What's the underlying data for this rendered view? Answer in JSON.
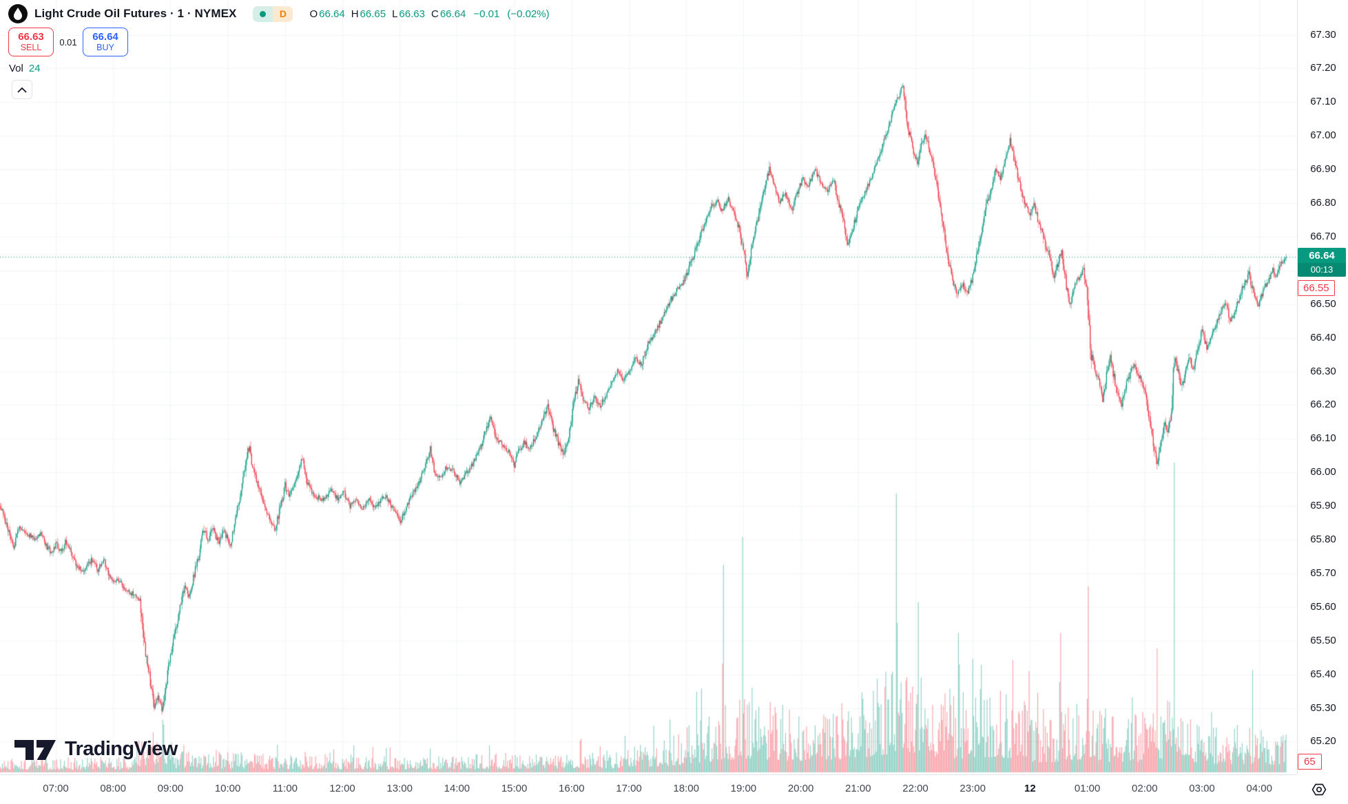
{
  "header": {
    "symbol_title": "Light Crude Oil Futures · 1 · NYMEX",
    "market_status": "open",
    "interval_badge": "D",
    "ohlc": {
      "o_label": "O",
      "o": "66.64",
      "h_label": "H",
      "h": "66.65",
      "l_label": "L",
      "l": "66.63",
      "c_label": "C",
      "c": "66.64",
      "change": "−0.01",
      "change_pct": "(−0.02%)"
    }
  },
  "trade_panel": {
    "sell_price": "66.63",
    "sell_label": "SELL",
    "spread": "0.01",
    "buy_price": "66.64",
    "buy_label": "BUY"
  },
  "volume_legend": {
    "label": "Vol",
    "value": "24"
  },
  "price_axis": {
    "tick_labels": [
      "67.30",
      "67.20",
      "67.10",
      "67.00",
      "66.90",
      "66.80",
      "66.70",
      "66.60",
      "66.50",
      "66.40",
      "66.30",
      "66.20",
      "66.10",
      "66.00",
      "65.90",
      "65.80",
      "65.70",
      "65.60",
      "65.50",
      "65.40",
      "65.30",
      "65.20"
    ],
    "current_price": "66.64",
    "countdown": "00:13",
    "ask_label": "66.55",
    "volume_label": "65"
  },
  "time_axis": {
    "labels": [
      "07:00",
      "08:00",
      "09:00",
      "10:00",
      "11:00",
      "12:00",
      "13:00",
      "14:00",
      "15:00",
      "16:00",
      "17:00",
      "18:00",
      "19:00",
      "20:00",
      "21:00",
      "22:00",
      "23:00",
      "12",
      "01:00",
      "02:00",
      "03:00",
      "04:00"
    ],
    "date_label": "12"
  },
  "watermark": "TradingView",
  "colors": {
    "up": "#089981",
    "down": "#F23645",
    "buy_blue": "#2962FF",
    "sell_red": "#F23645",
    "interval_orange": "#f57c00",
    "text": "#131722",
    "grid": "#f1f3f7",
    "axis_border": "#e0e3eb",
    "current_label_bg": "#089981",
    "countdown_bg": "#078a74",
    "vol_up": "rgba(8,153,129,0.45)",
    "vol_down": "rgba(242,54,69,0.45)"
  },
  "chart_data": {
    "type": "candlestick",
    "symbol": "Light Crude Oil Futures (NYMEX)",
    "interval": "1 minute",
    "x_unit": "minutes since 06:00",
    "session_high": 67.17,
    "session_low": 65.28,
    "last_bar": {
      "open": 66.64,
      "high": 66.65,
      "low": 66.63,
      "close": 66.64,
      "volume": 24
    },
    "current_price": 66.64,
    "y_axis": {
      "min": 65.08,
      "max": 67.36,
      "tick": 0.1
    },
    "price_anchors": [
      [
        2,
        65.9
      ],
      [
        6,
        65.86
      ],
      [
        10,
        65.83
      ],
      [
        16,
        65.78
      ],
      [
        22,
        65.84
      ],
      [
        30,
        65.82
      ],
      [
        38,
        65.8
      ],
      [
        44,
        65.82
      ],
      [
        50,
        65.78
      ],
      [
        56,
        65.76
      ],
      [
        60,
        65.79
      ],
      [
        66,
        65.76
      ],
      [
        70,
        65.8
      ],
      [
        76,
        65.76
      ],
      [
        82,
        65.72
      ],
      [
        90,
        65.71
      ],
      [
        97,
        65.74
      ],
      [
        104,
        65.71
      ],
      [
        110,
        65.74
      ],
      [
        118,
        65.68
      ],
      [
        126,
        65.68
      ],
      [
        132,
        65.65
      ],
      [
        140,
        65.64
      ],
      [
        148,
        65.62
      ],
      [
        152,
        65.5
      ],
      [
        156,
        65.43
      ],
      [
        160,
        65.36
      ],
      [
        163,
        65.3
      ],
      [
        167,
        65.34
      ],
      [
        171,
        65.3
      ],
      [
        175,
        65.36
      ],
      [
        179,
        65.44
      ],
      [
        185,
        65.53
      ],
      [
        190,
        65.6
      ],
      [
        195,
        65.66
      ],
      [
        200,
        65.63
      ],
      [
        205,
        65.7
      ],
      [
        210,
        65.76
      ],
      [
        215,
        65.83
      ],
      [
        220,
        65.8
      ],
      [
        225,
        65.84
      ],
      [
        230,
        65.79
      ],
      [
        236,
        65.83
      ],
      [
        242,
        65.78
      ],
      [
        247,
        65.84
      ],
      [
        252,
        65.92
      ],
      [
        257,
        66.0
      ],
      [
        261,
        66.06
      ],
      [
        263,
        66.07
      ],
      [
        267,
        66.0
      ],
      [
        272,
        65.96
      ],
      [
        277,
        65.91
      ],
      [
        283,
        65.87
      ],
      [
        290,
        65.83
      ],
      [
        295,
        65.9
      ],
      [
        300,
        65.96
      ],
      [
        304,
        65.93
      ],
      [
        310,
        65.97
      ],
      [
        315,
        66.02
      ],
      [
        318,
        66.04
      ],
      [
        323,
        65.97
      ],
      [
        330,
        65.93
      ],
      [
        340,
        65.92
      ],
      [
        348,
        65.95
      ],
      [
        355,
        65.92
      ],
      [
        362,
        65.94
      ],
      [
        368,
        65.9
      ],
      [
        375,
        65.92
      ],
      [
        381,
        65.89
      ],
      [
        388,
        65.93
      ],
      [
        394,
        65.89
      ],
      [
        400,
        65.92
      ],
      [
        406,
        65.93
      ],
      [
        411,
        65.9
      ],
      [
        416,
        65.88
      ],
      [
        420,
        65.85
      ],
      [
        426,
        65.89
      ],
      [
        432,
        65.93
      ],
      [
        440,
        65.97
      ],
      [
        448,
        66.03
      ],
      [
        452,
        66.07
      ],
      [
        456,
        66.0
      ],
      [
        462,
        65.98
      ],
      [
        470,
        66.02
      ],
      [
        477,
        66.0
      ],
      [
        483,
        65.97
      ],
      [
        490,
        66.0
      ],
      [
        497,
        66.03
      ],
      [
        504,
        66.07
      ],
      [
        510,
        66.12
      ],
      [
        515,
        66.16
      ],
      [
        521,
        66.1
      ],
      [
        528,
        66.08
      ],
      [
        534,
        66.06
      ],
      [
        540,
        66.02
      ],
      [
        544,
        66.06
      ],
      [
        550,
        66.09
      ],
      [
        556,
        66.07
      ],
      [
        563,
        66.11
      ],
      [
        570,
        66.16
      ],
      [
        575,
        66.2
      ],
      [
        581,
        66.13
      ],
      [
        587,
        66.08
      ],
      [
        592,
        66.05
      ],
      [
        598,
        66.12
      ],
      [
        603,
        66.22
      ],
      [
        607,
        66.27
      ],
      [
        612,
        66.22
      ],
      [
        618,
        66.19
      ],
      [
        624,
        66.22
      ],
      [
        630,
        66.2
      ],
      [
        636,
        66.23
      ],
      [
        642,
        66.27
      ],
      [
        648,
        66.3
      ],
      [
        653,
        66.27
      ],
      [
        660,
        66.3
      ],
      [
        667,
        66.34
      ],
      [
        673,
        66.32
      ],
      [
        680,
        66.38
      ],
      [
        688,
        66.42
      ],
      [
        695,
        66.46
      ],
      [
        703,
        66.51
      ],
      [
        710,
        66.54
      ],
      [
        716,
        66.56
      ],
      [
        722,
        66.6
      ],
      [
        728,
        66.65
      ],
      [
        734,
        66.7
      ],
      [
        740,
        66.75
      ],
      [
        747,
        66.79
      ],
      [
        752,
        66.81
      ],
      [
        757,
        66.78
      ],
      [
        764,
        66.81
      ],
      [
        770,
        66.77
      ],
      [
        776,
        66.72
      ],
      [
        780,
        66.66
      ],
      [
        784,
        66.59
      ],
      [
        788,
        66.66
      ],
      [
        793,
        66.73
      ],
      [
        798,
        66.8
      ],
      [
        803,
        66.86
      ],
      [
        807,
        66.9
      ],
      [
        812,
        66.85
      ],
      [
        818,
        66.8
      ],
      [
        823,
        66.83
      ],
      [
        830,
        66.78
      ],
      [
        836,
        66.83
      ],
      [
        842,
        66.87
      ],
      [
        848,
        66.85
      ],
      [
        855,
        66.9
      ],
      [
        861,
        66.86
      ],
      [
        868,
        66.84
      ],
      [
        874,
        66.87
      ],
      [
        879,
        66.81
      ],
      [
        884,
        66.75
      ],
      [
        889,
        66.68
      ],
      [
        894,
        66.72
      ],
      [
        900,
        66.78
      ],
      [
        907,
        66.83
      ],
      [
        914,
        66.88
      ],
      [
        921,
        66.93
      ],
      [
        928,
        66.99
      ],
      [
        934,
        67.05
      ],
      [
        940,
        67.1
      ],
      [
        945,
        67.14
      ],
      [
        947,
        67.15
      ],
      [
        950,
        67.06
      ],
      [
        954,
        67.0
      ],
      [
        958,
        66.95
      ],
      [
        962,
        66.92
      ],
      [
        966,
        66.97
      ],
      [
        970,
        67.0
      ],
      [
        974,
        66.97
      ],
      [
        979,
        66.91
      ],
      [
        984,
        66.82
      ],
      [
        989,
        66.73
      ],
      [
        994,
        66.63
      ],
      [
        999,
        66.57
      ],
      [
        1004,
        66.53
      ],
      [
        1009,
        66.56
      ],
      [
        1014,
        66.53
      ],
      [
        1019,
        66.57
      ],
      [
        1024,
        66.64
      ],
      [
        1029,
        66.71
      ],
      [
        1034,
        66.79
      ],
      [
        1039,
        66.84
      ],
      [
        1044,
        66.9
      ],
      [
        1049,
        66.87
      ],
      [
        1054,
        66.94
      ],
      [
        1059,
        66.99
      ],
      [
        1064,
        66.92
      ],
      [
        1069,
        66.86
      ],
      [
        1074,
        66.8
      ],
      [
        1080,
        66.76
      ],
      [
        1084,
        66.8
      ],
      [
        1089,
        66.74
      ],
      [
        1095,
        66.69
      ],
      [
        1100,
        66.64
      ],
      [
        1105,
        66.58
      ],
      [
        1110,
        66.63
      ],
      [
        1113,
        66.66
      ],
      [
        1118,
        66.55
      ],
      [
        1122,
        66.5
      ],
      [
        1126,
        66.55
      ],
      [
        1131,
        66.58
      ],
      [
        1136,
        66.6
      ],
      [
        1139,
        66.55
      ],
      [
        1141,
        66.46
      ],
      [
        1144,
        66.35
      ],
      [
        1148,
        66.3
      ],
      [
        1152,
        66.28
      ],
      [
        1156,
        66.22
      ],
      [
        1160,
        66.29
      ],
      [
        1164,
        66.34
      ],
      [
        1168,
        66.28
      ],
      [
        1172,
        66.23
      ],
      [
        1176,
        66.2
      ],
      [
        1181,
        66.26
      ],
      [
        1186,
        66.3
      ],
      [
        1190,
        66.32
      ],
      [
        1195,
        66.28
      ],
      [
        1200,
        66.24
      ],
      [
        1205,
        66.16
      ],
      [
        1209,
        66.08
      ],
      [
        1213,
        66.02
      ],
      [
        1217,
        66.09
      ],
      [
        1221,
        66.16
      ],
      [
        1224,
        66.12
      ],
      [
        1228,
        66.17
      ],
      [
        1231,
        66.35
      ],
      [
        1235,
        66.3
      ],
      [
        1239,
        66.25
      ],
      [
        1243,
        66.3
      ],
      [
        1247,
        66.34
      ],
      [
        1251,
        66.3
      ],
      [
        1255,
        66.36
      ],
      [
        1260,
        66.42
      ],
      [
        1265,
        66.37
      ],
      [
        1270,
        66.4
      ],
      [
        1275,
        66.44
      ],
      [
        1280,
        66.48
      ],
      [
        1285,
        66.5
      ],
      [
        1290,
        66.45
      ],
      [
        1294,
        66.47
      ],
      [
        1299,
        66.52
      ],
      [
        1304,
        66.56
      ],
      [
        1309,
        66.59
      ],
      [
        1314,
        66.53
      ],
      [
        1319,
        66.5
      ],
      [
        1324,
        66.54
      ],
      [
        1329,
        66.57
      ],
      [
        1334,
        66.6
      ],
      [
        1338,
        66.58
      ],
      [
        1343,
        66.62
      ],
      [
        1348,
        66.64
      ]
    ],
    "volume_profile_anchors": [
      [
        0,
        0.035
      ],
      [
        140,
        0.04
      ],
      [
        150,
        0.1
      ],
      [
        175,
        0.13
      ],
      [
        185,
        0.06
      ],
      [
        300,
        0.045
      ],
      [
        420,
        0.04
      ],
      [
        540,
        0.05
      ],
      [
        650,
        0.06
      ],
      [
        700,
        0.09
      ],
      [
        720,
        0.12
      ],
      [
        750,
        0.16
      ],
      [
        780,
        0.2
      ],
      [
        810,
        0.18
      ],
      [
        850,
        0.16
      ],
      [
        900,
        0.2
      ],
      [
        940,
        0.28
      ],
      [
        970,
        0.24
      ],
      [
        1000,
        0.2
      ],
      [
        1040,
        0.22
      ],
      [
        1070,
        0.2
      ],
      [
        1080,
        0.16
      ],
      [
        1100,
        0.14
      ],
      [
        1140,
        0.2
      ],
      [
        1170,
        0.14
      ],
      [
        1210,
        0.16
      ],
      [
        1231,
        0.2
      ],
      [
        1260,
        0.13
      ],
      [
        1300,
        0.12
      ],
      [
        1348,
        0.1
      ]
    ],
    "volume_spikes": [
      [
        172,
        0.17
      ],
      [
        759,
        0.67
      ],
      [
        779,
        0.76
      ],
      [
        940,
        0.9
      ],
      [
        963,
        0.55
      ],
      [
        1005,
        0.45
      ],
      [
        1112,
        0.45
      ],
      [
        1141,
        0.6
      ],
      [
        1213,
        0.4
      ],
      [
        1231,
        1.0
      ],
      [
        1313,
        0.33
      ]
    ]
  }
}
